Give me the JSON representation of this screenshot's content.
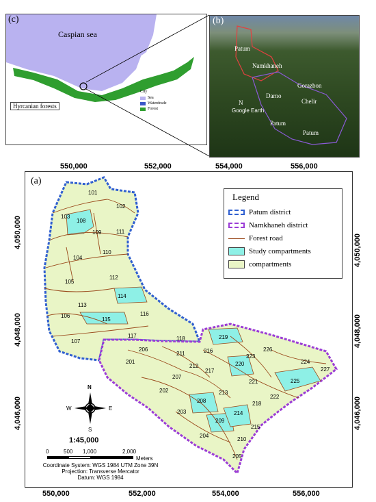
{
  "panel_c": {
    "tag": "(c)",
    "sea_label": "Caspian sea",
    "forest_label": "Hyrcanian forests",
    "legend": {
      "title": "City",
      "items": [
        "Sea",
        "Waterdrade",
        "Forest"
      ]
    },
    "colors": {
      "sea": "#b9b2f0",
      "forest": "#2f9e2f"
    }
  },
  "panel_b": {
    "tag": "(b)",
    "labels": [
      "Patum",
      "Namkhaneh",
      "Gorazbon",
      "Darno",
      "Chelir",
      "Patum",
      "Patum"
    ],
    "north": "N",
    "credit": "Google Earth"
  },
  "panel_a": {
    "tag": "(a)",
    "x_ticks": [
      "550,000",
      "552,000",
      "554,000",
      "556,000"
    ],
    "y_ticks": [
      "4,050,000",
      "4,048,000",
      "4,046,000"
    ],
    "legend": {
      "title": "Legend",
      "items": [
        {
          "label": "Patum district",
          "swatch": "dashed-blue"
        },
        {
          "label": "Namkhaneh district",
          "swatch": "dashed-purple"
        },
        {
          "label": "Forest road",
          "swatch": "line-brown"
        },
        {
          "label": "Study compartments",
          "swatch": "fill-cyan"
        },
        {
          "label": "compartments",
          "swatch": "fill-yellow"
        }
      ]
    },
    "compass": {
      "n": "N",
      "s": "S",
      "e": "E",
      "w": "W"
    },
    "scale_ratio": "1:45,000",
    "scale_ticks": [
      "0",
      "500",
      "1,000",
      "2,000"
    ],
    "scale_unit": "Meters",
    "info": [
      "Coordinate System: WGS 1984 UTM Zone 39N",
      "Projection: Transverse Mercator",
      "Datum: WGS 1984"
    ],
    "compartments": [
      "101",
      "102",
      "103",
      "108",
      "109",
      "111",
      "104",
      "110",
      "105",
      "112",
      "114",
      "113",
      "106",
      "116",
      "115",
      "117",
      "107",
      "118",
      "206",
      "211",
      "201",
      "207",
      "212",
      "216",
      "217",
      "219",
      "220",
      "223",
      "226",
      "224",
      "227",
      "225",
      "221",
      "222",
      "202",
      "208",
      "213",
      "218",
      "203",
      "209",
      "214",
      "215",
      "210",
      "204",
      "205"
    ],
    "colors": {
      "patum": "#2f5fd0",
      "namkhaneh": "#9b3cd6",
      "road": "#9a4a1c",
      "study": "#8ef0e6",
      "comp": "#e9f5c6"
    }
  }
}
